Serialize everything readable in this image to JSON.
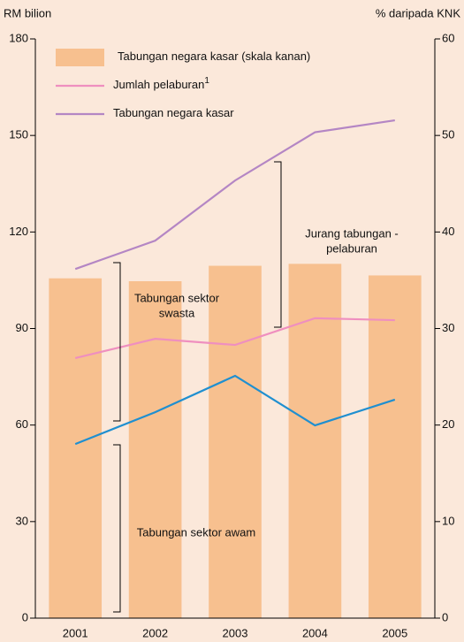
{
  "chart_data": {
    "type": "bar",
    "y_label": "RM bilion",
    "y2_label": "% daripada KNK",
    "categories": [
      "2001",
      "2002",
      "2003",
      "2004",
      "2005"
    ],
    "series": [
      {
        "name": "Tabungan negara kasar (skala kanan)",
        "type": "bar",
        "axis": "y2",
        "color": "#f7c08f",
        "values": [
          35.2,
          34.9,
          36.5,
          36.7,
          35.5
        ]
      },
      {
        "name": "Jumlah pelaburan",
        "name_note": "1",
        "type": "line",
        "color": "#ef8fbf",
        "values": [
          80.8,
          86.8,
          84.9,
          93.2,
          92.6
        ]
      },
      {
        "name": "Tabungan negara kasar",
        "type": "line",
        "color": "#b486c4",
        "values": [
          108.5,
          117.3,
          136,
          151,
          154.7
        ]
      },
      {
        "type": "line",
        "color": "#1f8fd0",
        "values": [
          54.1,
          64,
          75.3,
          59.9,
          67.9
        ]
      }
    ],
    "ylim": [
      0,
      180
    ],
    "yticks": [
      0,
      30,
      60,
      90,
      120,
      150,
      180
    ],
    "y2lim": [
      0,
      60
    ],
    "y2ticks": [
      0,
      10,
      20,
      30,
      40,
      50,
      60
    ],
    "annotations": [
      {
        "lines": [
          "Jurang tabungan -",
          "pelaburan"
        ]
      },
      {
        "lines": [
          "Tabungan sektor",
          "swasta"
        ]
      },
      {
        "lines": [
          "Tabungan sektor awam"
        ]
      }
    ]
  }
}
